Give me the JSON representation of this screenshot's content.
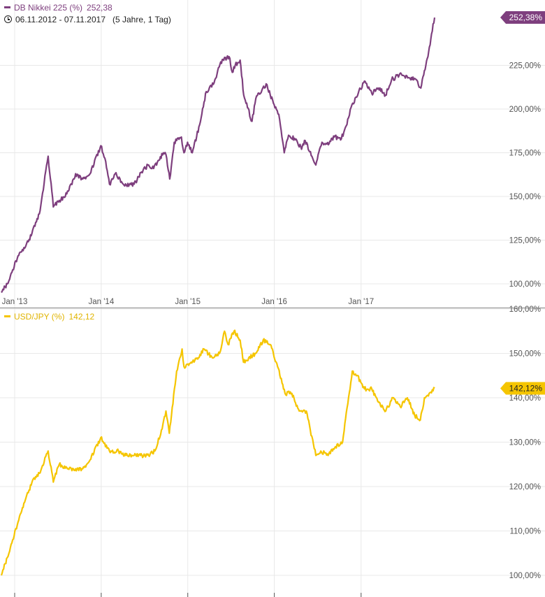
{
  "colors": {
    "nikkei": "#7e3f7e",
    "usdjpy": "#f5c500",
    "grid": "#e8e8e8",
    "axis_text": "#555555",
    "divider": "#888888"
  },
  "legend": {
    "nikkei": {
      "name": "DB Nikkei 225 (%)",
      "value": "252,38"
    },
    "usdjpy": {
      "name": "USD/JPY (%)",
      "value": "142,12"
    }
  },
  "period": {
    "range": "06.11.2012 - 07.11.2017",
    "span": "(5 Jahre, 1 Tag)"
  },
  "chart_data": [
    {
      "type": "line",
      "series": [
        {
          "name": "DB Nikkei 225 (%)",
          "last_label": "252,38%",
          "x": [
            "2012-11-06",
            "2012-12-01",
            "2013-01-15",
            "2013-02-15",
            "2013-03-15",
            "2013-04-15",
            "2013-05-22",
            "2013-06-13",
            "2013-07-15",
            "2013-08-15",
            "2013-09-15",
            "2013-10-15",
            "2013-11-15",
            "2013-12-30",
            "2014-01-20",
            "2014-02-05",
            "2014-03-01",
            "2014-04-10",
            "2014-05-20",
            "2014-06-20",
            "2014-07-20",
            "2014-08-10",
            "2014-09-20",
            "2014-10-01",
            "2014-10-17",
            "2014-11-05",
            "2014-12-05",
            "2014-12-16",
            "2014-12-31",
            "2015-01-20",
            "2015-02-20",
            "2015-03-20",
            "2015-04-22",
            "2015-05-20",
            "2015-06-24",
            "2015-07-08",
            "2015-07-20",
            "2015-08-10",
            "2015-08-25",
            "2015-09-29",
            "2015-10-15",
            "2015-11-10",
            "2015-12-01",
            "2015-12-15",
            "2016-01-20",
            "2016-02-12",
            "2016-03-01",
            "2016-04-05",
            "2016-04-25",
            "2016-05-10",
            "2016-06-24",
            "2016-07-20",
            "2016-08-10",
            "2016-09-10",
            "2016-10-10",
            "2016-11-09",
            "2016-11-20",
            "2016-12-20",
            "2017-01-15",
            "2017-02-15",
            "2017-03-15",
            "2017-04-14",
            "2017-05-10",
            "2017-06-20",
            "2017-07-20",
            "2017-08-20",
            "2017-09-10",
            "2017-09-25",
            "2017-10-10",
            "2017-10-25",
            "2017-11-07"
          ],
          "values": [
            95,
            100,
            116,
            121,
            129,
            140,
            173,
            144,
            148,
            153,
            163,
            160,
            163,
            179,
            170,
            157,
            163,
            156,
            157,
            164,
            168,
            166,
            175,
            174,
            160,
            181,
            184,
            175,
            181,
            175,
            191,
            210,
            215,
            227,
            230,
            221,
            225,
            228,
            208,
            193,
            206,
            211,
            214,
            208,
            197,
            175,
            185,
            182,
            177,
            182,
            168,
            181,
            180,
            184,
            183,
            195,
            201,
            209,
            216,
            209,
            212,
            208,
            217,
            220,
            218,
            217,
            212,
            222,
            230,
            243,
            252.38
          ]
        }
      ],
      "y_ticks": [
        "100,00%",
        "125,00%",
        "150,00%",
        "175,00%",
        "200,00%",
        "225,00%"
      ],
      "ylim": [
        95,
        263
      ],
      "x_ticks": [
        "Jan '13",
        "Jan '14",
        "Jan '15",
        "Jan '16",
        "Jan '17"
      ],
      "grid": true
    },
    {
      "type": "line",
      "series": [
        {
          "name": "USD/JPY (%)",
          "last_label": "142,12%",
          "x": [
            "2012-11-06",
            "2012-12-01",
            "2013-01-15",
            "2013-02-15",
            "2013-03-15",
            "2013-04-15",
            "2013-05-22",
            "2013-06-13",
            "2013-07-08",
            "2013-08-15",
            "2013-09-15",
            "2013-10-15",
            "2013-11-15",
            "2013-12-30",
            "2014-02-05",
            "2014-03-15",
            "2014-04-15",
            "2014-05-20",
            "2014-06-15",
            "2014-07-20",
            "2014-08-15",
            "2014-09-15",
            "2014-10-01",
            "2014-10-15",
            "2014-11-15",
            "2014-12-08",
            "2014-12-16",
            "2015-01-15",
            "2015-02-15",
            "2015-03-10",
            "2015-04-15",
            "2015-05-15",
            "2015-06-05",
            "2015-06-20",
            "2015-07-15",
            "2015-08-10",
            "2015-08-24",
            "2015-09-15",
            "2015-10-15",
            "2015-11-15",
            "2015-12-15",
            "2016-01-15",
            "2016-02-15",
            "2016-03-15",
            "2016-04-15",
            "2016-05-15",
            "2016-06-24",
            "2016-07-15",
            "2016-08-15",
            "2016-09-15",
            "2016-10-15",
            "2016-11-09",
            "2016-11-25",
            "2016-12-15",
            "2017-01-15",
            "2017-02-15",
            "2017-03-15",
            "2017-04-15",
            "2017-05-15",
            "2017-06-15",
            "2017-07-15",
            "2017-08-15",
            "2017-09-08",
            "2017-09-25",
            "2017-10-15",
            "2017-11-07"
          ],
          "values": [
            100,
            104,
            112,
            117,
            121,
            123,
            128,
            121,
            125,
            124,
            124,
            124,
            126,
            131,
            128,
            128,
            127,
            127,
            127,
            127,
            128,
            133,
            137,
            132,
            146,
            151,
            147,
            148,
            149,
            151,
            149,
            150,
            155,
            152,
            155,
            153,
            148,
            149,
            150,
            153,
            152,
            147,
            141,
            141,
            137,
            137,
            127,
            128,
            127,
            129,
            130,
            140,
            146,
            145,
            142,
            142,
            139,
            137,
            140,
            138,
            140,
            136,
            135,
            140,
            141,
            142.12
          ]
        }
      ],
      "y_ticks": [
        "100,00%",
        "110,00%",
        "120,00%",
        "130,00%",
        "140,00%",
        "150,00%",
        "160,00%"
      ],
      "ylim": [
        99,
        160.5
      ],
      "x_ticks": [
        "Jan '13",
        "Jan '14",
        "Jan '15",
        "Jan '16",
        "Jan '17"
      ],
      "grid": true
    }
  ]
}
